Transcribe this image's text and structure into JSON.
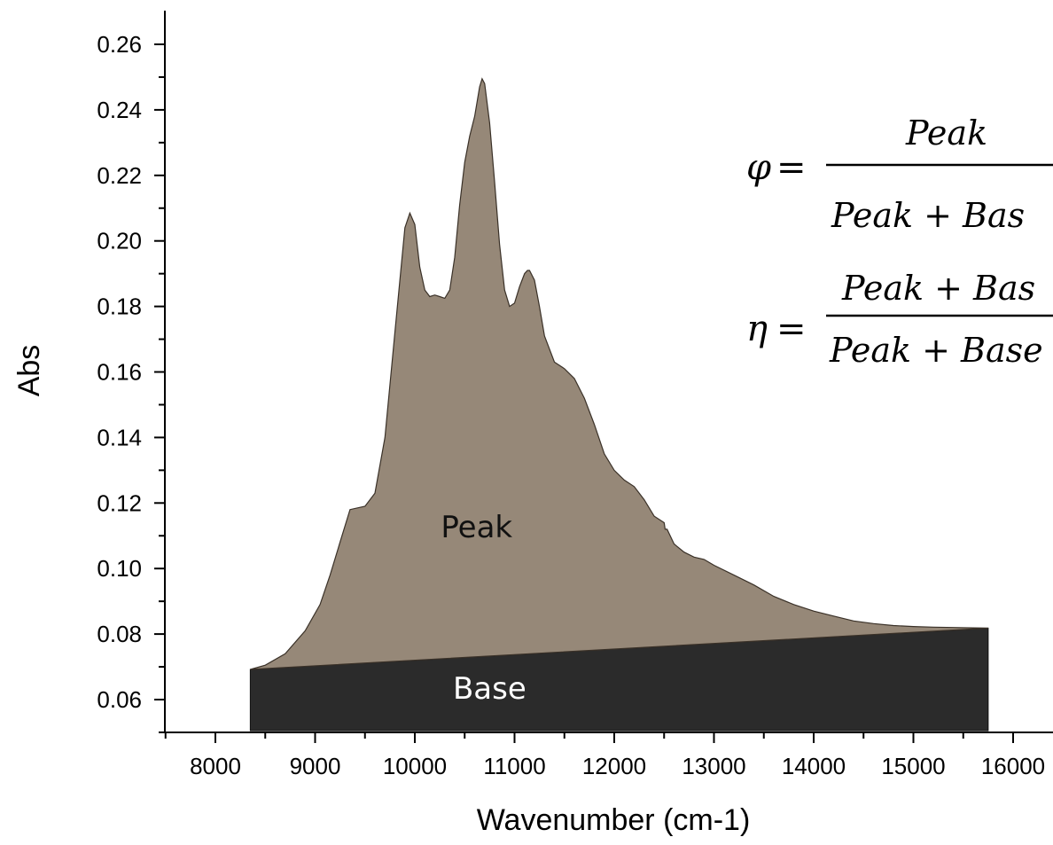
{
  "chart_data": {
    "type": "area",
    "xlabel": "Wavenumber (cm-1)",
    "ylabel": "Abs",
    "xlim": [
      7500,
      16300
    ],
    "ylim": [
      0.05,
      0.27
    ],
    "x_ticks": [
      8000,
      9000,
      10000,
      11000,
      12000,
      13000,
      14000,
      15000,
      16000
    ],
    "y_ticks": [
      0.06,
      0.08,
      0.1,
      0.12,
      0.14,
      0.16,
      0.18,
      0.2,
      0.22,
      0.24,
      0.26
    ],
    "x_tick_labels": [
      "8000",
      "9000",
      "10000",
      "11000",
      "12000",
      "13000",
      "14000",
      "15000",
      "16000"
    ],
    "y_tick_labels": [
      "0.06",
      "0.08",
      "0.10",
      "0.12",
      "0.14",
      "0.16",
      "0.18",
      "0.20",
      "0.22",
      "0.24",
      "0.26"
    ],
    "series": [
      {
        "name": "Peak",
        "color": "#968878",
        "x": [
          8350,
          8500,
          8700,
          8900,
          9050,
          9150,
          9250,
          9350,
          9500,
          9600,
          9700,
          9800,
          9900,
          9950,
          10000,
          10050,
          10100,
          10150,
          10200,
          10250,
          10300,
          10350,
          10400,
          10450,
          10500,
          10550,
          10600,
          10650,
          10675,
          10700,
          10750,
          10800,
          10850,
          10900,
          10950,
          11000,
          11050,
          11100,
          11130,
          11150,
          11200,
          11250,
          11300,
          11400,
          11500,
          11600,
          11700,
          11800,
          11900,
          12000,
          12100,
          12200,
          12300,
          12400,
          12500,
          12510,
          12530,
          12600,
          12700,
          12800,
          12900,
          13000,
          13200,
          13400,
          13600,
          13800,
          14000,
          14200,
          14400,
          14600,
          14800,
          15000,
          15200,
          15400,
          15600,
          15750
        ],
        "y": [
          0.0692,
          0.0705,
          0.074,
          0.081,
          0.089,
          0.098,
          0.108,
          0.118,
          0.119,
          0.123,
          0.14,
          0.172,
          0.204,
          0.2085,
          0.205,
          0.192,
          0.185,
          0.183,
          0.1835,
          0.183,
          0.1825,
          0.185,
          0.195,
          0.211,
          0.224,
          0.232,
          0.238,
          0.247,
          0.2495,
          0.248,
          0.236,
          0.218,
          0.199,
          0.185,
          0.18,
          0.181,
          0.186,
          0.19,
          0.191,
          0.191,
          0.188,
          0.18,
          0.171,
          0.163,
          0.161,
          0.158,
          0.152,
          0.144,
          0.135,
          0.13,
          0.127,
          0.125,
          0.121,
          0.116,
          0.114,
          0.112,
          0.112,
          0.1075,
          0.105,
          0.1035,
          0.1028,
          0.101,
          0.098,
          0.095,
          0.0915,
          0.089,
          0.087,
          0.0855,
          0.084,
          0.0832,
          0.0826,
          0.0823,
          0.0821,
          0.082,
          0.0819,
          0.0818
        ]
      },
      {
        "name": "Base",
        "color": "#2b2b2b",
        "x": [
          8350,
          15750
        ],
        "y": [
          0.0692,
          0.0818
        ],
        "floor": 0.0505
      }
    ]
  }
}
